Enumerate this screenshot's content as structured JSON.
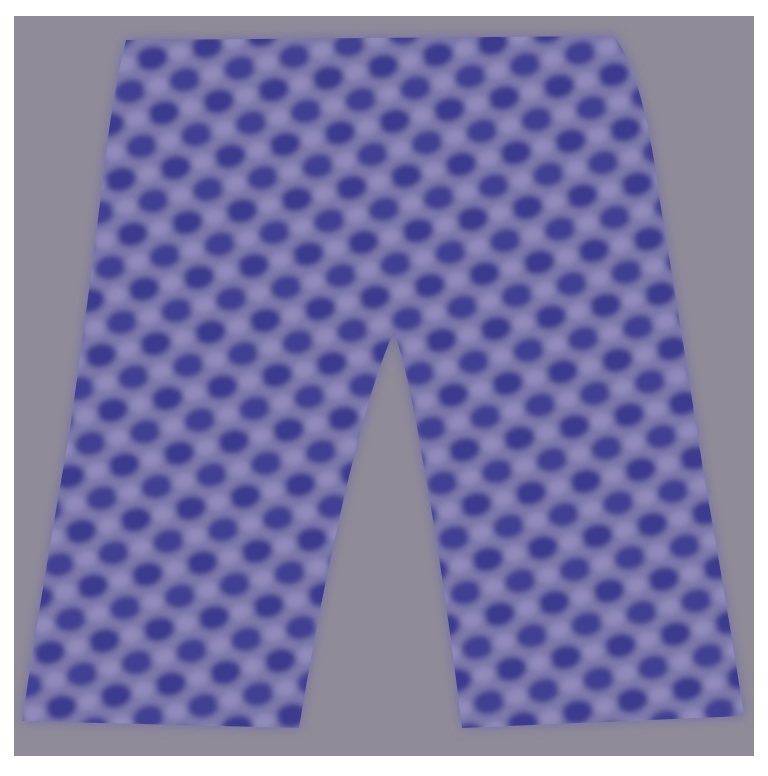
{
  "image": {
    "subject": "trousers-silhouette",
    "pattern": "checker-dots",
    "colors": {
      "background": "#8f8b98",
      "fabric_base": "#7b78aa",
      "pattern_dark": "#3e3a8e",
      "pattern_light": "#9a93c4"
    }
  }
}
